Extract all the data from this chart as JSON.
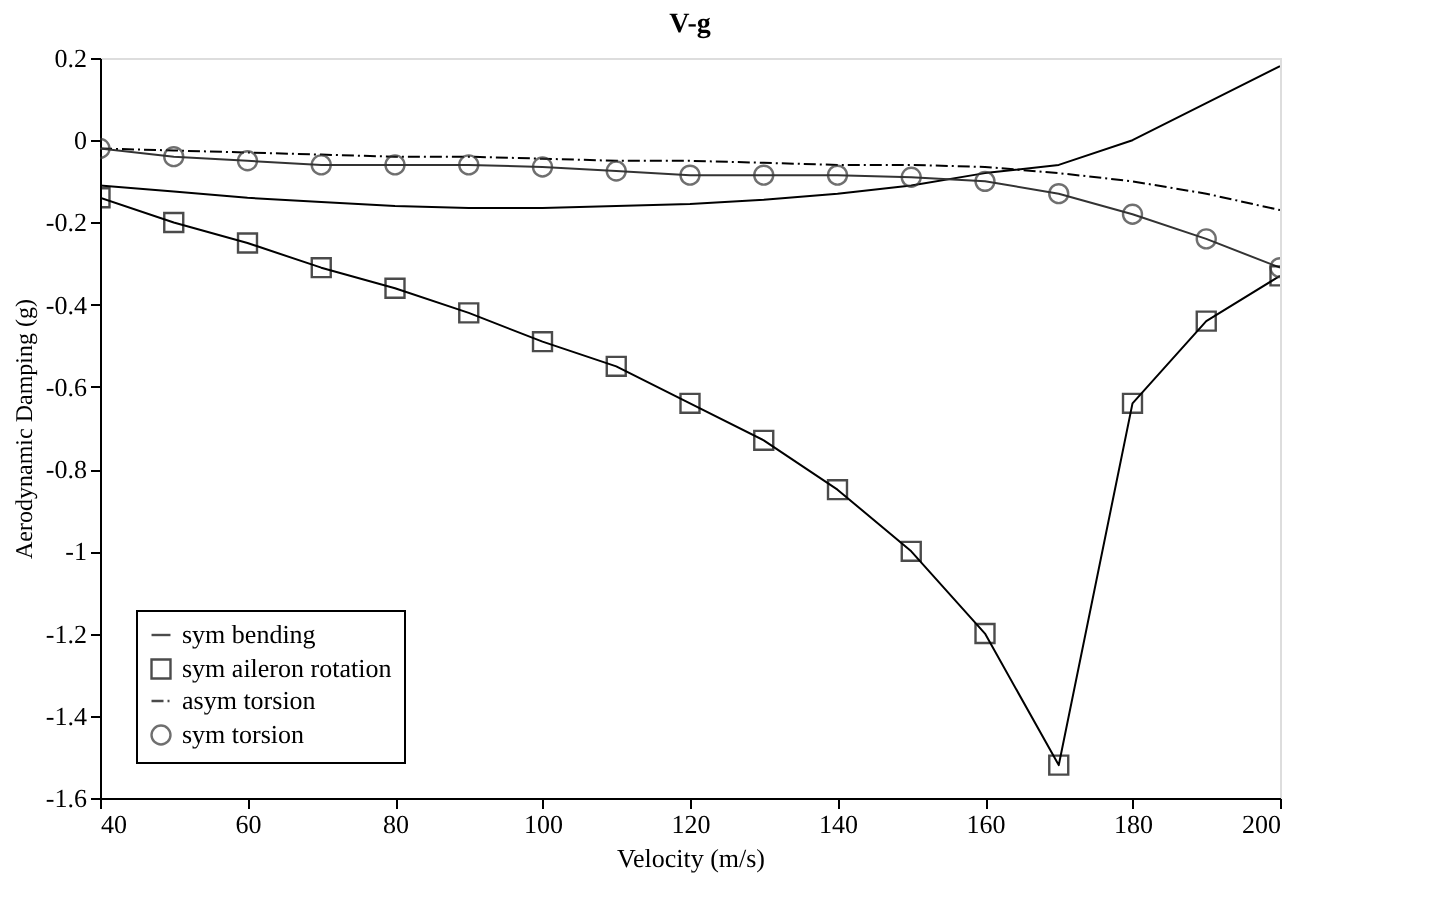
{
  "chart_data": {
    "type": "line",
    "title": "V-g",
    "xlabel": "Velocity (m/s)",
    "ylabel": "Aerodynamic Damping (g)",
    "x": [
      40,
      50,
      60,
      70,
      80,
      90,
      100,
      110,
      120,
      130,
      140,
      150,
      160,
      170,
      180,
      190,
      200
    ],
    "series": [
      {
        "name": "sym bending",
        "color": "#000000",
        "marker": "none",
        "line_style": "solid",
        "values": [
          -0.11,
          -0.125,
          -0.14,
          -0.15,
          -0.16,
          -0.165,
          -0.165,
          -0.16,
          -0.155,
          -0.145,
          -0.13,
          -0.11,
          -0.08,
          -0.06,
          0.0,
          0.09,
          0.18
        ]
      },
      {
        "name": "sym aileron rotation",
        "color": "#000000",
        "marker": "square",
        "line_style": "solid",
        "values": [
          -0.14,
          -0.2,
          -0.25,
          -0.31,
          -0.36,
          -0.42,
          -0.49,
          -0.55,
          -0.64,
          -0.73,
          -0.85,
          -1.0,
          -1.2,
          -1.52,
          -0.64,
          -0.44,
          -0.33
        ]
      },
      {
        "name": "asym torsion",
        "color": "#000000",
        "marker": "none",
        "line_style": "dashed",
        "values": [
          -0.02,
          -0.025,
          -0.03,
          -0.035,
          -0.04,
          -0.04,
          -0.045,
          -0.05,
          -0.05,
          -0.055,
          -0.06,
          -0.06,
          -0.065,
          -0.08,
          -0.1,
          -0.13,
          -0.17
        ]
      },
      {
        "name": "sym torsion",
        "color": "#333333",
        "marker": "circle",
        "line_style": "solid",
        "values": [
          -0.02,
          -0.04,
          -0.05,
          -0.06,
          -0.06,
          -0.06,
          -0.065,
          -0.075,
          -0.085,
          -0.085,
          -0.085,
          -0.09,
          -0.1,
          -0.13,
          -0.18,
          -0.24,
          -0.31
        ]
      }
    ],
    "xlim": [
      40,
      200
    ],
    "xticks": [
      40,
      60,
      80,
      100,
      120,
      140,
      160,
      180,
      200
    ],
    "ylim": [
      -1.6,
      0.2
    ],
    "yticks": [
      -1.6,
      -1.4,
      -1.2,
      -1,
      -0.8,
      -0.6,
      -0.4,
      -0.2,
      0,
      0.2
    ],
    "grid": false,
    "legend": "bottom left"
  }
}
